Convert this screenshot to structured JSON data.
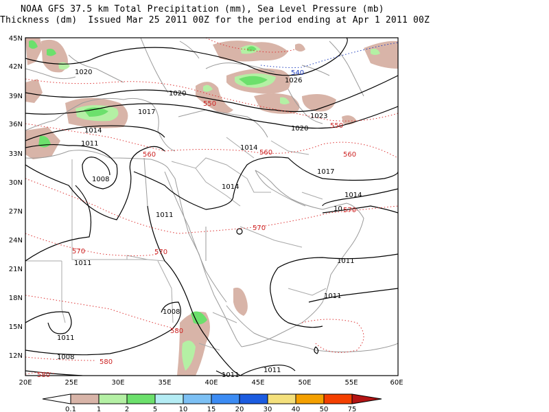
{
  "title": {
    "line1": "NOAA GFS 37.5 km Total Precipitation (mm), Sea Level Pressure (mb)",
    "line2": "Thickness (dm)  Issued Mar 25 2011 00Z for the period ending at Apr 1 2011 00Z"
  },
  "axes": {
    "lat_labels": [
      "45N",
      "42N",
      "39N",
      "36N",
      "33N",
      "30N",
      "27N",
      "24N",
      "21N",
      "18N",
      "15N",
      "12N"
    ],
    "lon_labels": [
      "20E",
      "25E",
      "30E",
      "35E",
      "40E",
      "45E",
      "50E",
      "55E",
      "60E"
    ]
  },
  "isobars": [
    {
      "label": "1020",
      "pos": "w-upper"
    },
    {
      "label": "1020",
      "pos": "center-upper"
    },
    {
      "label": "1017",
      "pos": "center-left"
    },
    {
      "label": "1014",
      "pos": "west"
    },
    {
      "label": "1011",
      "pos": "west-lower"
    },
    {
      "label": "1008",
      "pos": "libya-low"
    },
    {
      "label": "1026",
      "pos": "caspian"
    },
    {
      "label": "1023",
      "pos": "east-upper"
    },
    {
      "label": "1020",
      "pos": "east-upper-2"
    },
    {
      "label": "1014",
      "pos": "iraq"
    },
    {
      "label": "1017",
      "pos": "iran"
    },
    {
      "label": "1014",
      "pos": "arabia-north"
    },
    {
      "label": "1014",
      "pos": "east-mid"
    },
    {
      "label": "1011",
      "pos": "red-sea"
    },
    {
      "label": "10",
      "pos": "oman"
    },
    {
      "label": "1011",
      "pos": "sahara"
    },
    {
      "label": "1011",
      "pos": "arabian-sea"
    },
    {
      "label": "1011",
      "pos": "gulf-aden"
    },
    {
      "label": "1008",
      "pos": "ethiopia"
    },
    {
      "label": "1011",
      "pos": "sudan"
    },
    {
      "label": "1008",
      "pos": "chad"
    },
    {
      "label": "1011",
      "pos": "bottom-1"
    },
    {
      "label": "1011",
      "pos": "bottom-2"
    }
  ],
  "thickness": [
    {
      "label": "540",
      "color": "#1f3fbf"
    },
    {
      "label": "550",
      "color": "#cc2222"
    },
    {
      "label": "550",
      "color": "#cc2222"
    },
    {
      "label": "560",
      "color": "#cc2222"
    },
    {
      "label": "560",
      "color": "#cc2222"
    },
    {
      "label": "560",
      "color": "#cc2222"
    },
    {
      "label": "570",
      "color": "#cc2222"
    },
    {
      "label": "570",
      "color": "#cc2222"
    },
    {
      "label": "570",
      "color": "#cc2222"
    },
    {
      "label": "570",
      "color": "#cc2222"
    },
    {
      "label": "580",
      "color": "#cc2222"
    },
    {
      "label": "580",
      "color": "#cc2222"
    },
    {
      "label": "580",
      "color": "#cc2222"
    }
  ],
  "colorbar": {
    "labels": [
      "0.1",
      "1",
      "2",
      "5",
      "10",
      "15",
      "20",
      "30",
      "40",
      "50",
      "75"
    ],
    "colors": [
      "#d8b4a8",
      "#b4f0a4",
      "#6ce06c",
      "#b4ecf4",
      "#7cc0f4",
      "#3c8cf4",
      "#1c5ce0",
      "#f4e07c",
      "#f4a000",
      "#f44000",
      "#b41414"
    ]
  }
}
